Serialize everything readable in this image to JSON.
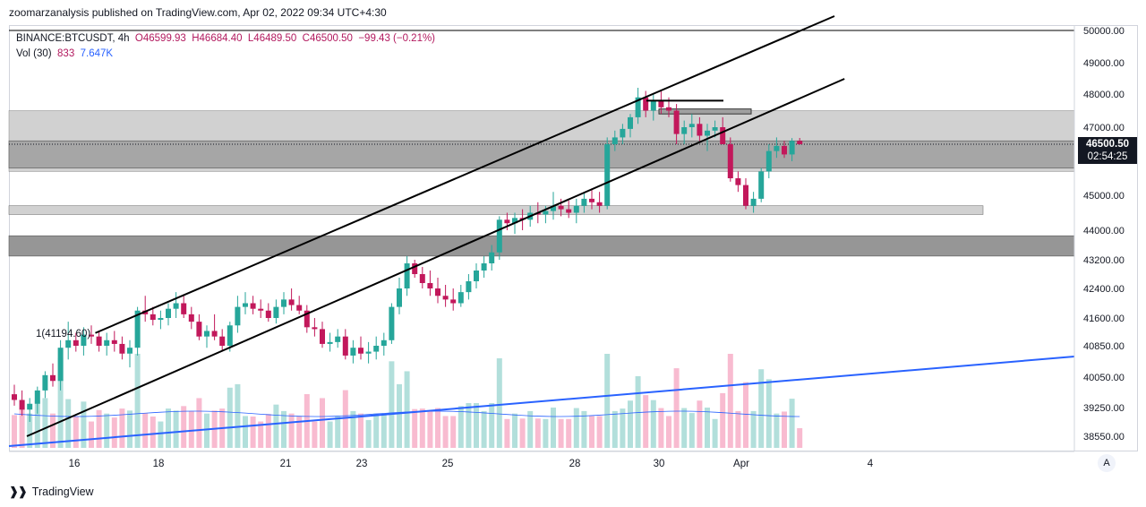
{
  "header": {
    "publisher_line": "zoomarzanalysis published on TradingView.com, Apr 02, 2022 09:34 UTC+4:30"
  },
  "legend": {
    "symbol": "BINANCE:BTCUSDT, 4h",
    "open": "O46599.93",
    "high": "H46684.40",
    "low": "L46489.50",
    "close": "C46500.50",
    "change": "−99.43 (−0.21%)",
    "vol_label": "Vol (30)",
    "vol_value": "833",
    "vol_ma": "7.647K"
  },
  "last_price": {
    "price": "46500.50",
    "countdown": "02:54:25"
  },
  "annotation": "1(41194.60)",
  "footer": {
    "brand": "TradingView"
  },
  "scale_button": "A",
  "colors": {
    "up": "#26a69a",
    "down": "#ef5350",
    "down_body": "#c2185b",
    "vol_up": "#b2dfdb",
    "vol_down": "#f8bbd0",
    "trend_blue": "#2962ff",
    "zone_light": "#d1d1d1",
    "zone_dark": "#a6a6a6",
    "text": "#131722"
  },
  "chart_data": {
    "type": "candlestick",
    "symbol": "BINANCE:BTCUSDT",
    "interval": "4h",
    "ylim": [
      38200,
      50200
    ],
    "y_ticks": [
      "50000.00",
      "49000.00",
      "48000.00",
      "47000.00",
      "45000.00",
      "44000.00",
      "43200.00",
      "42400.00",
      "41600.00",
      "40850.00",
      "40050.00",
      "39250.00",
      "38550.00"
    ],
    "x_ticks": [
      "16",
      "18",
      "21",
      "23",
      "25",
      "28",
      "30",
      "Apr",
      "4"
    ],
    "candles": [
      [
        "15.7",
        39600,
        39850,
        39300,
        39450
      ],
      [
        "15.8",
        39450,
        39700,
        39050,
        39200
      ],
      [
        "15.9",
        39200,
        39500,
        38900,
        39350
      ],
      [
        "16.0",
        39350,
        39800,
        39100,
        39700
      ],
      [
        "16.1",
        39700,
        40200,
        39500,
        40100
      ],
      [
        "16.2",
        40100,
        40400,
        39800,
        39950
      ],
      [
        "16.3",
        39950,
        41000,
        39700,
        40800
      ],
      [
        "16.4",
        40800,
        41500,
        40500,
        41000
      ],
      [
        "16.5",
        41000,
        41200,
        40700,
        40850
      ],
      [
        "16.6",
        40850,
        41350,
        40600,
        41150
      ],
      [
        "16.7",
        41150,
        41400,
        40900,
        41100
      ],
      [
        "16.8",
        41100,
        41250,
        40700,
        40850
      ],
      [
        "16.9",
        40850,
        41200,
        40600,
        41000
      ],
      [
        "17.0",
        41000,
        41250,
        40700,
        40900
      ],
      [
        "17.1",
        40900,
        41100,
        40500,
        40650
      ],
      [
        "17.2",
        40650,
        41000,
        40300,
        40800
      ],
      [
        "17.3",
        40800,
        41900,
        40600,
        41800
      ],
      [
        "17.4",
        41800,
        42200,
        41500,
        41700
      ],
      [
        "17.5",
        41700,
        41900,
        41400,
        41550
      ],
      [
        "17.6",
        41550,
        41800,
        41300,
        41600
      ],
      [
        "17.7",
        41600,
        42000,
        41400,
        41850
      ],
      [
        "17.8",
        41850,
        42300,
        41600,
        42000
      ],
      [
        "17.9",
        42000,
        42200,
        41600,
        41700
      ],
      [
        "18.0",
        41700,
        41900,
        41300,
        41500
      ],
      [
        "18.1",
        41500,
        41700,
        41000,
        41100
      ],
      [
        "18.2",
        41100,
        41400,
        40800,
        41250
      ],
      [
        "18.3",
        41250,
        41700,
        41000,
        41100
      ],
      [
        "18.4",
        41100,
        41300,
        40700,
        40850
      ],
      [
        "18.5",
        40850,
        41500,
        40700,
        41400
      ],
      [
        "18.6",
        41400,
        42200,
        41200,
        41900
      ],
      [
        "18.7",
        41900,
        42300,
        41700,
        42000
      ],
      [
        "18.8",
        42000,
        42200,
        41700,
        41850
      ],
      [
        "18.9",
        41850,
        42100,
        41600,
        41800
      ],
      [
        "19.0",
        41800,
        42000,
        41500,
        41600
      ],
      [
        "19.1",
        41600,
        42100,
        41450,
        41900
      ],
      [
        "19.2",
        41900,
        42300,
        41700,
        42100
      ],
      [
        "19.3",
        42100,
        42400,
        41800,
        41950
      ],
      [
        "19.4",
        41950,
        42200,
        41700,
        41800
      ],
      [
        "19.5",
        41800,
        41950,
        41200,
        41350
      ],
      [
        "19.6",
        41350,
        41600,
        41100,
        41300
      ],
      [
        "19.7",
        41300,
        41500,
        40800,
        40900
      ],
      [
        "19.8",
        40900,
        41200,
        40700,
        40950
      ],
      [
        "19.9",
        40950,
        41300,
        40800,
        41100
      ],
      [
        "20.0",
        41100,
        41300,
        40500,
        40600
      ],
      [
        "20.1",
        40600,
        41000,
        40400,
        40800
      ],
      [
        "20.2",
        40800,
        41100,
        40500,
        40650
      ],
      [
        "20.3",
        40650,
        40950,
        40400,
        40700
      ],
      [
        "20.4",
        40700,
        41100,
        40500,
        40850
      ],
      [
        "20.5",
        40850,
        41200,
        40600,
        41000
      ],
      [
        "20.6",
        41000,
        42000,
        40900,
        41900
      ],
      [
        "20.7",
        41900,
        42700,
        41700,
        42400
      ],
      [
        "20.8",
        42400,
        43300,
        42200,
        43100
      ],
      [
        "20.9",
        43100,
        43200,
        42700,
        42800
      ],
      [
        "21.0",
        42800,
        43000,
        42400,
        42550
      ],
      [
        "21.1",
        42550,
        42900,
        42200,
        42400
      ],
      [
        "21.2",
        42400,
        42700,
        42000,
        42200
      ],
      [
        "21.3",
        42200,
        42500,
        41900,
        42100
      ],
      [
        "21.4",
        42100,
        42400,
        41800,
        42000
      ],
      [
        "21.5",
        42000,
        42500,
        41900,
        42300
      ],
      [
        "21.6",
        42300,
        42800,
        42100,
        42600
      ],
      [
        "21.7",
        42600,
        43100,
        42400,
        42900
      ],
      [
        "21.8",
        42900,
        43300,
        42700,
        43100
      ],
      [
        "21.9",
        43100,
        43600,
        42900,
        43400
      ],
      [
        "22.0",
        43400,
        44400,
        43200,
        44300
      ],
      [
        "22.1",
        44300,
        44500,
        44000,
        44200
      ],
      [
        "22.2",
        44200,
        44500,
        43900,
        44350
      ],
      [
        "22.3",
        44350,
        44600,
        44000,
        44300
      ],
      [
        "22.4",
        44300,
        44700,
        44100,
        44500
      ],
      [
        "22.5",
        44500,
        44800,
        44200,
        44450
      ],
      [
        "22.6",
        44450,
        44700,
        44200,
        44550
      ],
      [
        "22.7",
        44550,
        45100,
        44300,
        44700
      ],
      [
        "22.8",
        44700,
        44900,
        44400,
        44600
      ],
      [
        "22.9",
        44600,
        44850,
        44350,
        44500
      ],
      [
        "23.0",
        44500,
        44900,
        44200,
        44700
      ],
      [
        "23.1",
        44700,
        45100,
        44500,
        44900
      ],
      [
        "23.2",
        44900,
        45200,
        44600,
        44800
      ],
      [
        "23.3",
        44800,
        45100,
        44500,
        44700
      ],
      [
        "23.4",
        44700,
        46700,
        44600,
        46500
      ],
      [
        "23.5",
        46500,
        46900,
        46300,
        46700
      ],
      [
        "23.6",
        46700,
        47100,
        46500,
        46950
      ],
      [
        "23.7",
        46950,
        47400,
        46700,
        47300
      ],
      [
        "23.8",
        47300,
        48200,
        47100,
        47900
      ],
      [
        "23.9",
        47900,
        48100,
        47300,
        47500
      ],
      [
        "24.0",
        47500,
        48000,
        47200,
        47800
      ],
      [
        "24.1",
        47800,
        48100,
        47400,
        47600
      ],
      [
        "24.2",
        47600,
        47900,
        47300,
        47500
      ],
      [
        "24.3",
        47500,
        47700,
        46500,
        46800
      ],
      [
        "24.4",
        46800,
        47200,
        46500,
        47000
      ],
      [
        "24.5",
        47000,
        47400,
        46700,
        47100
      ],
      [
        "24.6",
        47100,
        47300,
        46600,
        46750
      ],
      [
        "24.7",
        46750,
        47100,
        46300,
        46900
      ],
      [
        "24.8",
        46900,
        47200,
        46700,
        47000
      ],
      [
        "24.9",
        47000,
        47300,
        46600,
        46500
      ],
      [
        "25.0",
        46500,
        46700,
        45400,
        45500
      ],
      [
        "25.1",
        45500,
        45700,
        45100,
        45300
      ],
      [
        "25.2",
        45300,
        45500,
        44600,
        44700
      ],
      [
        "25.3",
        44700,
        45100,
        44500,
        44900
      ],
      [
        "25.4",
        44900,
        45800,
        44800,
        45700
      ],
      [
        "25.5",
        45700,
        46500,
        45500,
        46300
      ],
      [
        "25.6",
        46300,
        46700,
        46100,
        46450
      ],
      [
        "25.7",
        46450,
        46600,
        46100,
        46200
      ],
      [
        "25.8",
        46200,
        46680,
        46000,
        46599.93
      ],
      [
        "25.9",
        46599.93,
        46684.4,
        46489.5,
        46500.5
      ]
    ],
    "volume_ma": "7.647K",
    "levels": {
      "upper_zone": [
        45700,
        47500
      ],
      "inner_zone": [
        45800,
        46600
      ],
      "support_strip": [
        44450,
        44700
      ],
      "lower_zone": [
        43300,
        43850
      ],
      "resistance_box": [
        47400,
        47550
      ],
      "last_price": 46500.5
    },
    "annotations": [
      {
        "text": "1(41194.60)",
        "price": 41194.6
      }
    ],
    "grid": false,
    "legend_position": "top-left"
  }
}
